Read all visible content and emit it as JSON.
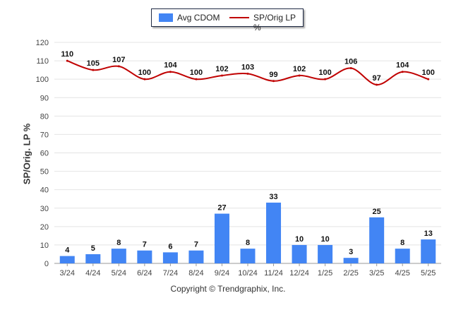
{
  "chart_data": {
    "type": "bar",
    "categories": [
      "3/24",
      "4/24",
      "5/24",
      "6/24",
      "7/24",
      "8/24",
      "9/24",
      "10/24",
      "11/24",
      "12/24",
      "1/25",
      "2/25",
      "3/25",
      "4/25",
      "5/25"
    ],
    "series": [
      {
        "name": "Avg CDOM",
        "type": "bar",
        "color": "#4285f4",
        "values": [
          4,
          5,
          8,
          7,
          6,
          7,
          27,
          8,
          33,
          10,
          10,
          3,
          25,
          8,
          13
        ]
      },
      {
        "name": "SP/Orig LP %",
        "type": "line",
        "color": "#c00000",
        "values": [
          110,
          105,
          107,
          100,
          104,
          100,
          102,
          103,
          99,
          102,
          100,
          106,
          97,
          104,
          100
        ]
      }
    ],
    "ylabel": "SP/Orig. LP %",
    "ylim": [
      0,
      120
    ],
    "yticks": [
      0,
      10,
      20,
      30,
      40,
      50,
      60,
      70,
      80,
      90,
      100,
      110,
      120
    ],
    "grid": true,
    "legend": "top-center"
  },
  "footer": "Copyright © Trendgraphix, Inc."
}
